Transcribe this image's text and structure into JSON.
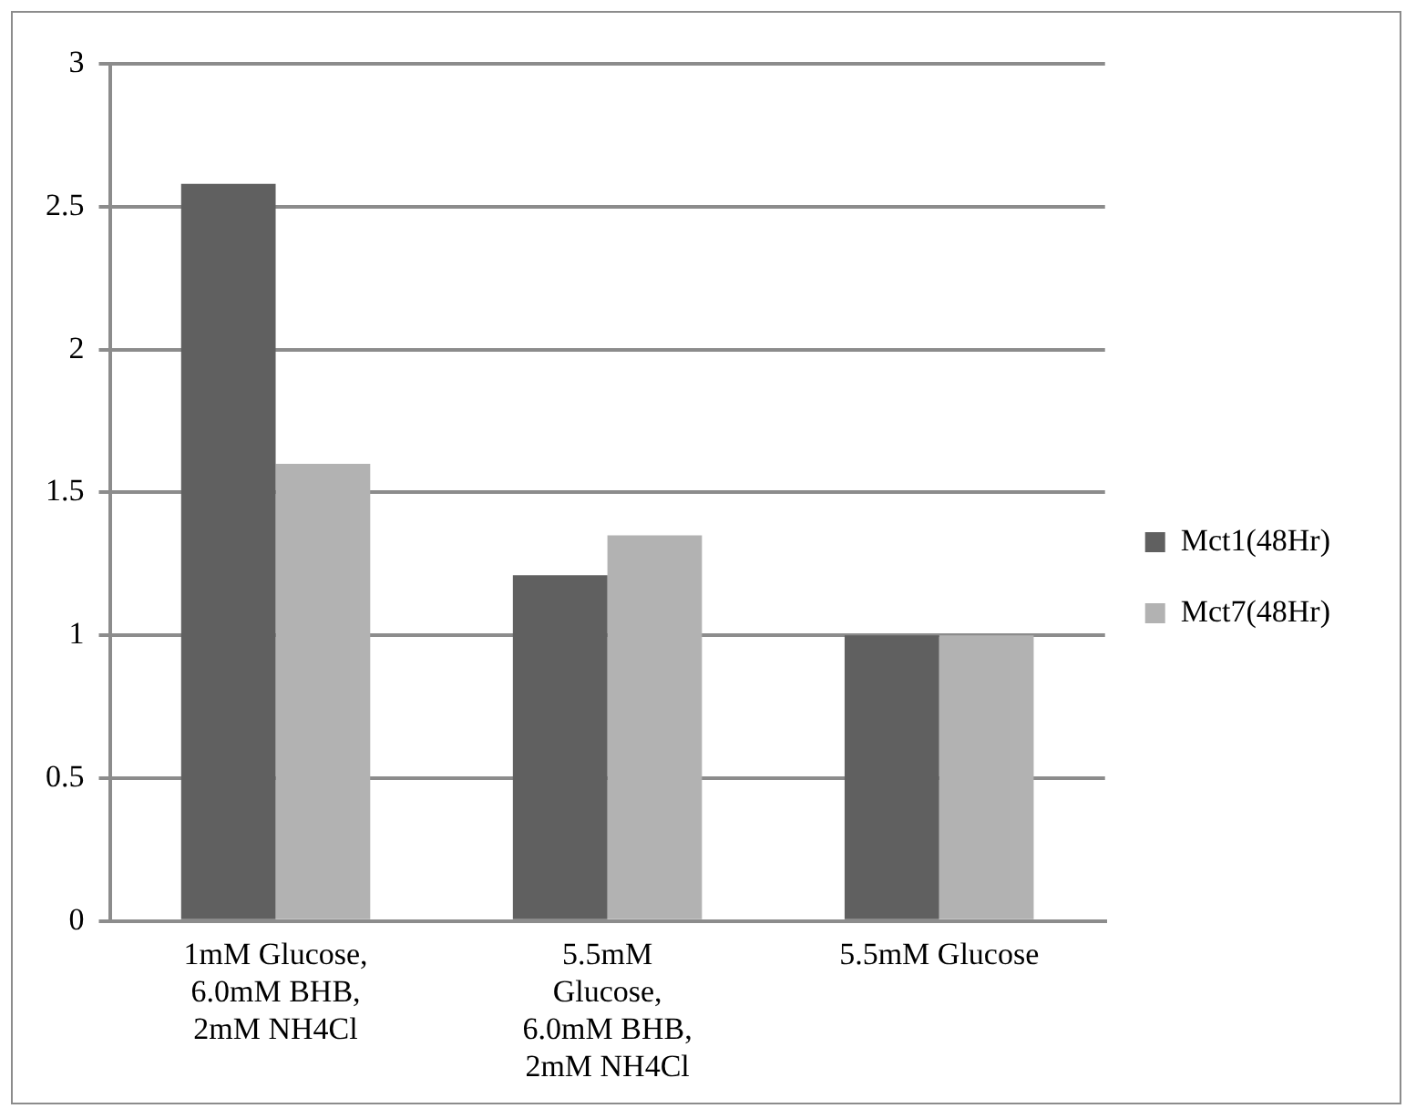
{
  "chart_data": {
    "type": "bar",
    "categories": [
      "1mM Glucose, 6.0mM BHB, 2mM NH4Cl",
      "5.5mM Glucose, 6.0mM BHB, 2mM NH4Cl",
      "5.5mM Glucose"
    ],
    "series": [
      {
        "name": "Mct1(48Hr)",
        "color": "#606060",
        "values": [
          2.58,
          1.21,
          1.0
        ]
      },
      {
        "name": "Mct7(48Hr)",
        "color": "#b2b2b2",
        "values": [
          1.6,
          1.35,
          1.0
        ]
      }
    ],
    "ylim": [
      0,
      3
    ],
    "yticks": [
      0,
      0.5,
      1,
      1.5,
      2,
      2.5,
      3
    ],
    "grid": "y",
    "legend": "right"
  }
}
